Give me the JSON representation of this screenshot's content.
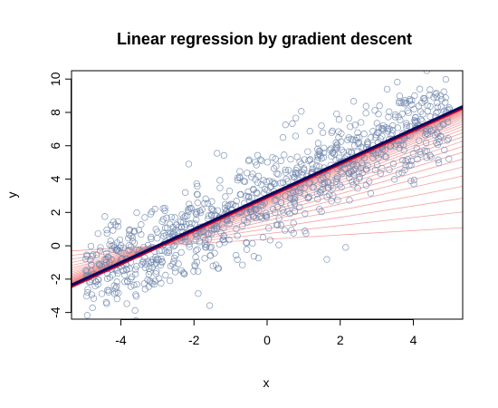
{
  "chart_data": {
    "type": "scatter",
    "title": "Linear regression by gradient descent",
    "xlabel": "x",
    "ylabel": "y",
    "xlim": [
      -5.35,
      5.35
    ],
    "ylim": [
      -4.4,
      10.5
    ],
    "xticks": [
      -4,
      -2,
      0,
      2,
      4
    ],
    "yticks": [
      -4,
      -2,
      0,
      2,
      4,
      6,
      8,
      10
    ],
    "grid": false,
    "legend": "none",
    "points": {
      "count": 1000,
      "x_range": [
        -5,
        5
      ],
      "trend_intercept": 3.0,
      "trend_slope": 1.0,
      "spread": 1.3,
      "marker": "open-circle",
      "color": "#6f86ad"
    },
    "fitted_lines": {
      "count": 40,
      "color": "#f08080",
      "start": {
        "intercept": 0.0,
        "slope": 0.0
      },
      "final": {
        "intercept": 3.0,
        "slope": 1.0
      },
      "final_color": "#0a0a60",
      "final_secondary_color": "#cc0022"
    }
  }
}
